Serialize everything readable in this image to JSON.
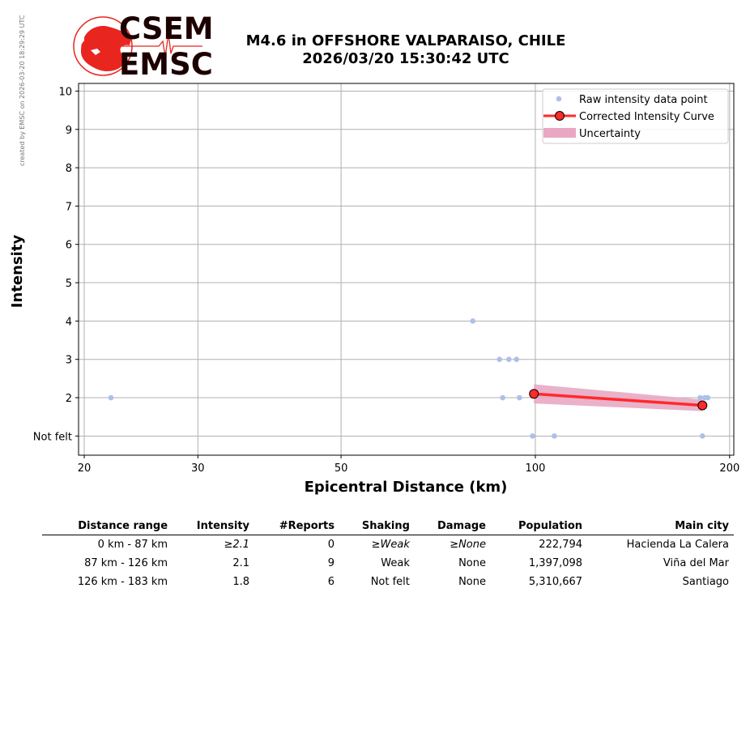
{
  "credit_text": "created by EMSC on 2026-03-20 18:29:29 UTC",
  "logo": {
    "top": "CSEM",
    "bottom": "EMSC"
  },
  "colors": {
    "raw_points": "#aebfe8",
    "curve": "#ff2a2a",
    "curve_marker": "#ff2a2a",
    "uncertainty": "#e8a8c4",
    "logo_red": "#e8261f"
  },
  "chart_data": {
    "type": "scatter",
    "title_line1": "M4.6 in OFFSHORE VALPARAISO, CHILE",
    "title_line2": "2026/03/20 15:30:42 UTC",
    "xlabel": "Epicentral Distance (km)",
    "ylabel": "Intensity",
    "x_scale": "log",
    "xlim": [
      19.6,
      203
    ],
    "ylim": [
      0.5,
      10.2
    ],
    "x_ticks": [
      20,
      30,
      50,
      100,
      200
    ],
    "x_tick_labels": [
      "20",
      "30",
      "50",
      "100",
      "200"
    ],
    "y_ticks": [
      1,
      2,
      3,
      4,
      5,
      6,
      7,
      8,
      9,
      10
    ],
    "y_tick_labels": [
      "Not felt",
      "2",
      "3",
      "4",
      "5",
      "6",
      "7",
      "8",
      "9",
      "10"
    ],
    "grid": true,
    "legend_position": "top-right",
    "legend": [
      "Raw intensity data point",
      "Corrected Intensity Curve",
      "Uncertainty"
    ],
    "raw_points": [
      {
        "x": 22,
        "y": 2
      },
      {
        "x": 80,
        "y": 4
      },
      {
        "x": 88,
        "y": 3
      },
      {
        "x": 91,
        "y": 3
      },
      {
        "x": 93.5,
        "y": 3
      },
      {
        "x": 89,
        "y": 2
      },
      {
        "x": 94.5,
        "y": 2
      },
      {
        "x": 99,
        "y": 1
      },
      {
        "x": 107,
        "y": 1
      },
      {
        "x": 180,
        "y": 2
      },
      {
        "x": 183,
        "y": 2
      },
      {
        "x": 185,
        "y": 2
      },
      {
        "x": 181.5,
        "y": 1
      }
    ],
    "curve": [
      {
        "x": 99.5,
        "y": 2.1
      },
      {
        "x": 181.5,
        "y": 1.8
      }
    ],
    "uncertainty": {
      "x": [
        99.5,
        181.5
      ],
      "upper": [
        2.35,
        1.95
      ],
      "lower": [
        1.85,
        1.65
      ]
    }
  },
  "table": {
    "headers": [
      "Distance range",
      "Intensity",
      "#Reports",
      "Shaking",
      "Damage",
      "Population",
      "Main city"
    ],
    "rows": [
      [
        "0 km -   87 km",
        "≥2.1",
        "0",
        "≥Weak",
        "≥None",
        "222,794",
        "Hacienda La Calera"
      ],
      [
        "87 km -  126 km",
        "2.1",
        "9",
        "Weak",
        "None",
        "1,397,098",
        "Viña del Mar"
      ],
      [
        "126 km -  183 km",
        "1.8",
        "6",
        "Not felt",
        "None",
        "5,310,667",
        "Santiago"
      ]
    ]
  }
}
